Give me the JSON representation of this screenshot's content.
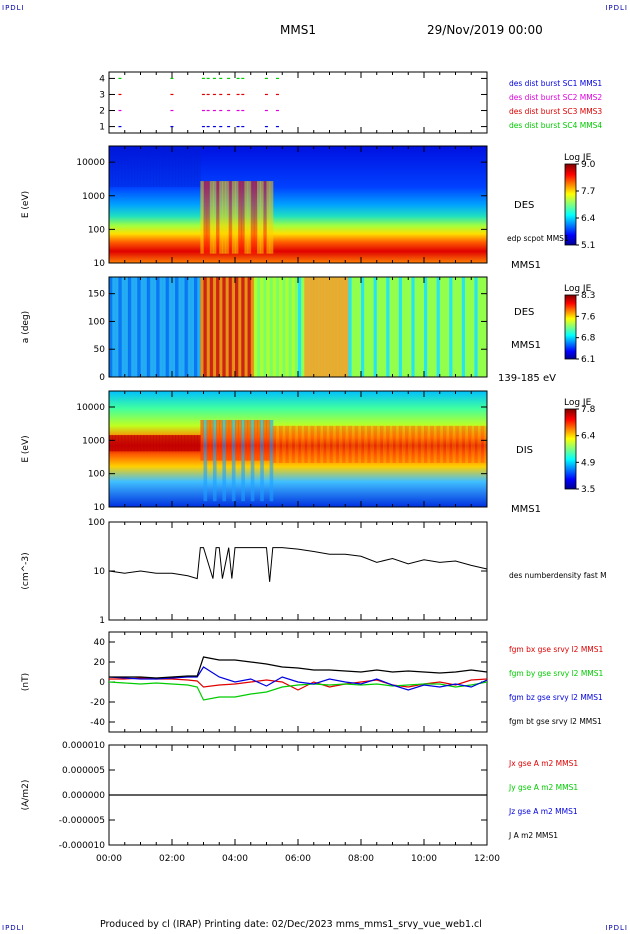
{
  "corner_labels": {
    "tl": "IPDLI",
    "tr": "IPDLI",
    "bl": "IPDLI",
    "br": "IPDLI"
  },
  "header": {
    "title": "MMS1",
    "date": "29/Nov/2019 00:00"
  },
  "footer": "Produced by cl (IRAP)   Printing date: 02/Dec/2023   mms_mms1_srvy_vue_web1.cl",
  "colors": {
    "black": "#000000",
    "red": "#e00000",
    "green": "#00cc00",
    "blue": "#0000e0",
    "magenta": "#e000e0"
  },
  "chart_data": [
    {
      "type": "scatter",
      "name": "burst-availability",
      "yticks": [
        "1",
        "2",
        "3",
        "4"
      ],
      "ylim": [
        0.6,
        4.4
      ],
      "labels": [
        {
          "text": "des dist burst SC1 MMS1",
          "color": "#0000e0"
        },
        {
          "text": "des dist burst SC2 MMS2",
          "color": "#e000e0"
        },
        {
          "text": "des dist burst SC3 MMS3",
          "color": "#e00000"
        },
        {
          "text": "des dist burst SC4 MMS4",
          "color": "#00cc00"
        }
      ],
      "intervals_hours": [
        0.3,
        1.95,
        2.95,
        3.1,
        3.3,
        3.5,
        3.75,
        4.05,
        4.2,
        4.95,
        5.3
      ],
      "tracks": [
        {
          "y": 4,
          "color": "#00cc00"
        },
        {
          "y": 3,
          "color": "#e00000"
        },
        {
          "y": 2,
          "color": "#e000e0"
        },
        {
          "y": 1,
          "color": "#0000e0"
        }
      ]
    },
    {
      "type": "heatmap",
      "name": "des-energy-spectrogram",
      "ylabel": "E (eV)",
      "yticks": [
        "10",
        "100",
        "1000",
        "10000"
      ],
      "right_labels": [
        "DES",
        "edp scpot MMS1",
        "MMS1"
      ],
      "colorbar": {
        "title": "Log JE",
        "ticks": [
          "9.0",
          "7.7",
          "6.4",
          "5.1"
        ]
      },
      "ylog": true,
      "ylim": [
        10,
        30000
      ]
    },
    {
      "type": "heatmap",
      "name": "des-pitch-angle",
      "ylabel": "a (deg)",
      "yticks": [
        "0",
        "50",
        "100",
        "150"
      ],
      "right_labels": [
        "DES",
        "MMS1",
        "139-185 eV"
      ],
      "colorbar": {
        "title": "Log JE",
        "ticks": [
          "8.3",
          "7.6",
          "6.8",
          "6.1"
        ]
      },
      "ylim": [
        0,
        180
      ]
    },
    {
      "type": "heatmap",
      "name": "dis-energy-spectrogram",
      "ylabel": "E (eV)",
      "yticks": [
        "10",
        "100",
        "1000",
        "10000"
      ],
      "right_labels": [
        "DIS",
        "MMS1"
      ],
      "colorbar": {
        "title": "Log JE",
        "ticks": [
          "7.8",
          "6.4",
          "4.9",
          "3.5"
        ]
      },
      "ylog": true,
      "ylim": [
        10,
        30000
      ]
    },
    {
      "type": "line",
      "name": "density",
      "ylabel": "(cm^-3)",
      "yticks": [
        "1",
        "10",
        "100"
      ],
      "ylog": true,
      "ylim": [
        1,
        100
      ],
      "series": [
        {
          "name": "des numberdensity fast M",
          "color": "#000000",
          "x": [
            0,
            0.5,
            1,
            1.5,
            2,
            2.5,
            2.8,
            2.9,
            3.0,
            3.3,
            3.4,
            3.5,
            3.6,
            3.8,
            3.9,
            4.0,
            4.5,
            5.0,
            5.1,
            5.2,
            5.5,
            6,
            6.5,
            7,
            7.5,
            8,
            8.5,
            9,
            9.5,
            10,
            10.5,
            11,
            11.5,
            12
          ],
          "y": [
            10,
            9,
            10,
            9,
            9,
            8,
            7,
            30,
            30,
            7,
            30,
            30,
            7,
            30,
            7,
            30,
            30,
            30,
            6,
            30,
            30,
            28,
            25,
            22,
            22,
            20,
            15,
            18,
            14,
            17,
            15,
            16,
            13,
            11
          ]
        }
      ]
    },
    {
      "type": "line",
      "name": "magnetic-field",
      "ylabel": "(nT)",
      "yticks": [
        "-40",
        "-20",
        "0",
        "20",
        "40"
      ],
      "ylim": [
        -50,
        50
      ],
      "x": [
        0,
        0.5,
        1,
        1.5,
        2,
        2.5,
        2.8,
        3.0,
        3.5,
        4.0,
        4.5,
        5.0,
        5.5,
        6.0,
        6.5,
        7.0,
        7.5,
        8.0,
        8.5,
        9.0,
        9.5,
        10.0,
        10.5,
        11.0,
        11.5,
        12.0
      ],
      "series": [
        {
          "name": "fgm bx gse srvy l2 MMS1",
          "color": "#e00000",
          "values": [
            3,
            3,
            4,
            3,
            3,
            2,
            1,
            -5,
            -3,
            -2,
            0,
            2,
            0,
            -8,
            0,
            -5,
            -2,
            0,
            2,
            -3,
            -5,
            -2,
            0,
            -3,
            2,
            3
          ]
        },
        {
          "name": "fgm by gse srvy l2 MMS1",
          "color": "#00cc00",
          "values": [
            0,
            -1,
            -2,
            -1,
            -2,
            -3,
            -5,
            -18,
            -15,
            -15,
            -12,
            -10,
            -5,
            -3,
            -2,
            -3,
            -2,
            -3,
            -2,
            -4,
            -3,
            -2,
            -2,
            -5,
            -3,
            0
          ]
        },
        {
          "name": "fgm bz gse srvy l2 MMS1",
          "color": "#0000e0",
          "values": [
            5,
            4,
            3,
            3,
            4,
            5,
            5,
            15,
            5,
            0,
            3,
            -4,
            5,
            0,
            -2,
            3,
            0,
            -2,
            3,
            -3,
            -8,
            -3,
            -5,
            -2,
            -5,
            2
          ]
        },
        {
          "name": "fgm bt gse srvy l2 MMS1",
          "color": "#000000",
          "values": [
            5,
            5,
            5,
            4,
            5,
            6,
            6,
            25,
            22,
            22,
            20,
            18,
            15,
            14,
            12,
            12,
            11,
            10,
            12,
            10,
            11,
            10,
            9,
            10,
            12,
            10
          ]
        }
      ]
    },
    {
      "type": "line",
      "name": "current-density",
      "ylabel": "(A/m2)",
      "yticks": [
        "-0.000010",
        "-0.000005",
        "0.000000",
        "0.000005",
        "0.000010"
      ],
      "ylim": [
        -1e-05,
        1e-05
      ],
      "series": [
        {
          "name": "Jx gse A m2 MMS1",
          "color": "#e00000"
        },
        {
          "name": "Jy gse A m2 MMS1",
          "color": "#00cc00"
        },
        {
          "name": "Jz gse A m2 MMS1",
          "color": "#0000e0"
        },
        {
          "name": "J A m2 MMS1",
          "color": "#000000"
        }
      ]
    }
  ],
  "xaxis": {
    "ticks": [
      "00:00",
      "02:00",
      "04:00",
      "06:00",
      "08:00",
      "10:00",
      "12:00"
    ],
    "xlim": [
      0,
      12
    ]
  }
}
